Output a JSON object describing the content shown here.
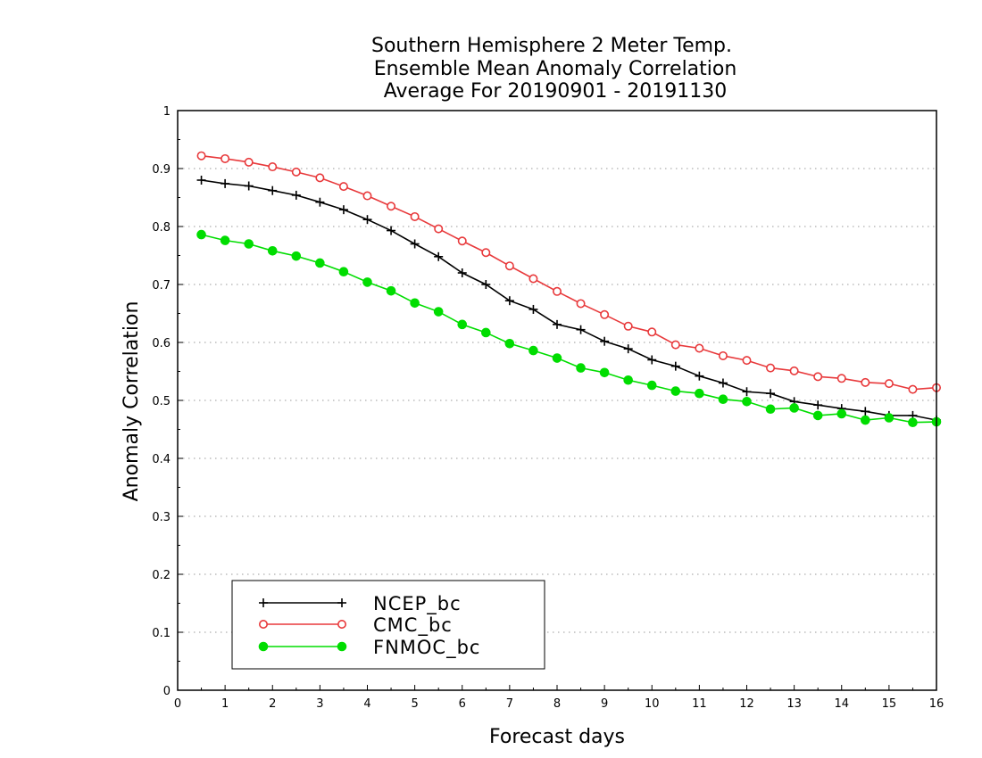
{
  "chart_data": {
    "type": "line",
    "title": [
      "Southern Hemisphere 2 Meter Temp.",
      "Ensemble Mean Anomaly Correlation",
      "Average For 20190901 - 20191130"
    ],
    "xlabel": "Forecast days",
    "ylabel": "Anomaly Correlation",
    "xlim": [
      0,
      16
    ],
    "ylim": [
      0,
      1
    ],
    "xticks": [
      0,
      1,
      2,
      3,
      4,
      5,
      6,
      7,
      8,
      9,
      10,
      11,
      12,
      13,
      14,
      15,
      16
    ],
    "yticks": [
      0,
      0.1,
      0.2,
      0.3,
      0.4,
      0.5,
      0.6,
      0.7,
      0.8,
      0.9,
      1
    ],
    "grid": "dotted-horizontal",
    "legend_position": "bottom-left",
    "x": [
      0.5,
      1,
      1.5,
      2,
      2.5,
      3,
      3.5,
      4,
      4.5,
      5,
      5.5,
      6,
      6.5,
      7,
      7.5,
      8,
      8.5,
      9,
      9.5,
      10,
      10.5,
      11,
      11.5,
      12,
      12.5,
      13,
      13.5,
      14,
      14.5,
      15,
      15.5,
      16
    ],
    "series": [
      {
        "name": "NCEP_bc",
        "color": "#000000",
        "marker": "plus",
        "values": [
          0.88,
          0.874,
          0.87,
          0.862,
          0.854,
          0.842,
          0.829,
          0.812,
          0.793,
          0.77,
          0.748,
          0.72,
          0.7,
          0.672,
          0.657,
          0.631,
          0.622,
          0.602,
          0.589,
          0.57,
          0.559,
          0.542,
          0.53,
          0.515,
          0.512,
          0.498,
          0.492,
          0.486,
          0.481,
          0.474,
          0.474,
          0.466
        ]
      },
      {
        "name": "CMC_bc",
        "color": "#e8393b",
        "marker": "open-circle",
        "values": [
          0.922,
          0.917,
          0.911,
          0.903,
          0.894,
          0.884,
          0.869,
          0.853,
          0.835,
          0.817,
          0.796,
          0.775,
          0.755,
          0.732,
          0.71,
          0.688,
          0.667,
          0.648,
          0.628,
          0.618,
          0.596,
          0.59,
          0.577,
          0.569,
          0.556,
          0.551,
          0.541,
          0.538,
          0.531,
          0.529,
          0.519,
          0.522
        ]
      },
      {
        "name": "FNMOC_bc",
        "color": "#00dd00",
        "marker": "filled-circle",
        "values": [
          0.786,
          0.776,
          0.77,
          0.758,
          0.749,
          0.737,
          0.722,
          0.704,
          0.689,
          0.668,
          0.653,
          0.631,
          0.617,
          0.598,
          0.586,
          0.573,
          0.556,
          0.548,
          0.535,
          0.526,
          0.516,
          0.512,
          0.502,
          0.498,
          0.485,
          0.487,
          0.474,
          0.477,
          0.466,
          0.47,
          0.462,
          0.463
        ]
      }
    ]
  }
}
